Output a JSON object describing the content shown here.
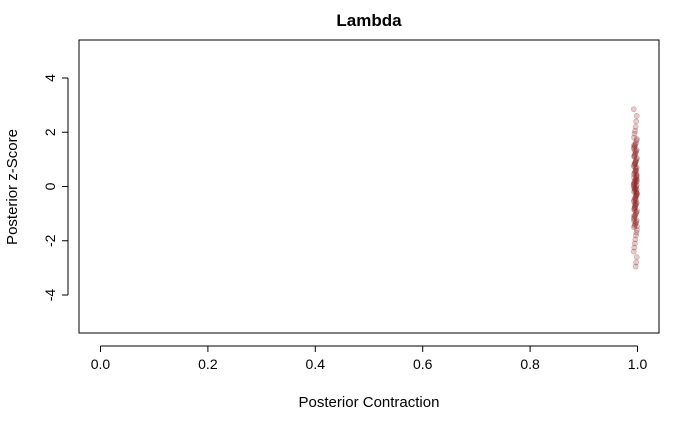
{
  "chart_data": {
    "type": "scatter",
    "title": "Lambda",
    "xlabel": "Posterior Contraction",
    "ylabel": "Posterior z-Score",
    "xlim": [
      -0.04,
      1.04
    ],
    "ylim": [
      -5.4,
      5.4
    ],
    "x_ticks": [
      0.0,
      0.2,
      0.4,
      0.6,
      0.8,
      1.0
    ],
    "x_tick_labels": [
      "0.0",
      "0.2",
      "0.4",
      "0.6",
      "0.8",
      "1.0"
    ],
    "y_ticks": [
      -4,
      -2,
      0,
      2,
      4
    ],
    "y_tick_labels": [
      "-4",
      "-2",
      "0",
      "2",
      "4"
    ],
    "grid": false,
    "point_color": "#8B1A1A",
    "point_alpha": 0.22,
    "series": [
      {
        "x_range": [
          0.993,
          0.999
        ],
        "z_values": [
          2.85,
          2.6,
          2.4,
          2.2,
          2.05,
          1.95,
          1.8,
          1.75,
          1.7,
          1.6,
          1.55,
          1.5,
          1.45,
          1.4,
          1.35,
          1.3,
          1.25,
          1.2,
          1.15,
          1.1,
          1.05,
          1.0,
          0.95,
          0.9,
          0.85,
          0.8,
          0.75,
          0.7,
          0.65,
          0.6,
          0.55,
          0.5,
          0.45,
          0.4,
          0.35,
          0.3,
          0.25,
          0.2,
          0.15,
          0.1,
          0.05,
          0.0,
          -0.05,
          -0.1,
          -0.15,
          -0.2,
          -0.25,
          -0.3,
          -0.35,
          -0.4,
          -0.45,
          -0.5,
          -0.55,
          -0.6,
          -0.65,
          -0.7,
          -0.75,
          -0.8,
          -0.85,
          -0.9,
          -0.95,
          -1.0,
          -1.05,
          -1.1,
          -1.15,
          -1.2,
          -1.25,
          -1.3,
          -1.35,
          -1.4,
          -1.45,
          -1.5,
          -1.6,
          -1.7,
          -1.8,
          -1.95,
          -2.1,
          -2.25,
          -2.4,
          -2.6,
          -2.8,
          -2.95,
          0.12,
          -0.08,
          0.33,
          -0.27,
          0.48,
          -0.52,
          0.71,
          -0.68,
          0.02,
          -0.02,
          0.18,
          -0.18,
          0.9,
          -0.88,
          1.12,
          -1.08,
          0.26,
          -0.34,
          0.58,
          -0.61,
          1.33,
          -1.28,
          0.07,
          -0.11,
          0.41,
          -0.44,
          0.83,
          -0.79,
          1.52,
          -1.47,
          0.21,
          -0.22
        ]
      }
    ]
  }
}
